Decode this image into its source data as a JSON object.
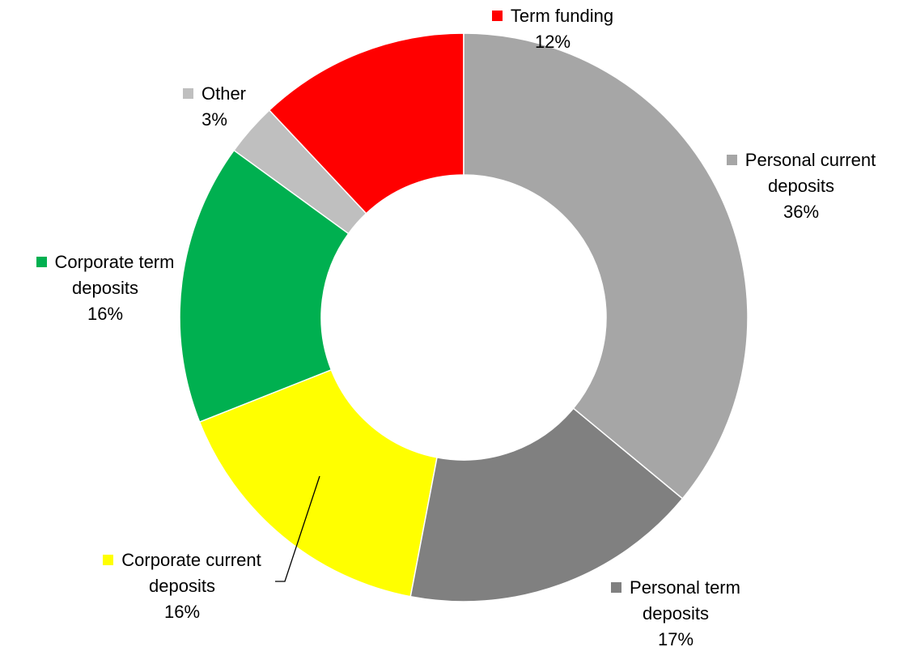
{
  "chart_data": {
    "type": "donut",
    "categories": [
      "Personal current deposits",
      "Personal term deposits",
      "Corporate current deposits",
      "Corporate term deposits",
      "Other",
      "Term funding"
    ],
    "values": [
      36,
      17,
      16,
      16,
      3,
      12
    ],
    "value_labels": [
      "36%",
      "17%",
      "16%",
      "16%",
      "3%",
      "12%"
    ],
    "colors": [
      "#a6a6a6",
      "#808080",
      "#ffff00",
      "#00b050",
      "#bfbfbf",
      "#ff0000"
    ]
  }
}
